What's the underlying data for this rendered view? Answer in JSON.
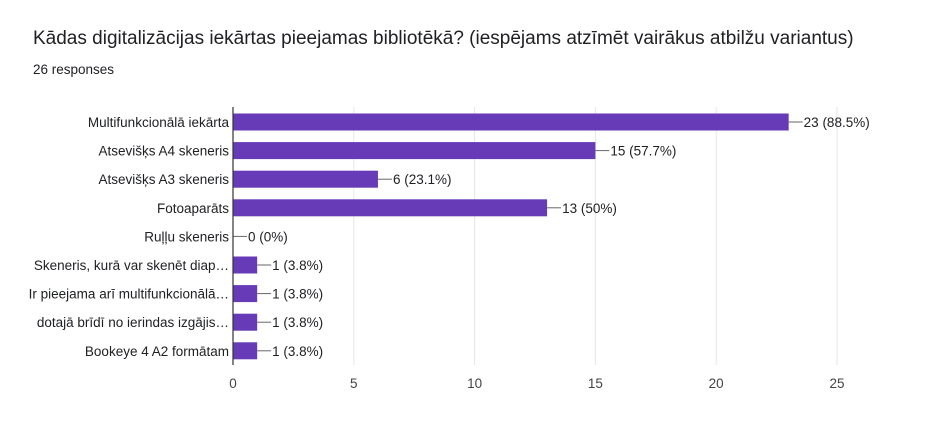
{
  "header": {
    "title": "Kādas digitalizācijas iekārtas pieejamas bibliotēkā? (iespējams atzīmēt vairākus atbilžu variantus)",
    "responses": "26 responses"
  },
  "colors": {
    "bar": "#673ab7",
    "grid": "#e6e6e6",
    "axis": "#333333"
  },
  "chart_data": {
    "type": "bar",
    "orientation": "horizontal",
    "categories": [
      "Multifunkcionālā iekārta",
      "Atsevišķs A4 skeneris",
      "Atsevišķs A3 skeneris",
      "Fotoaparāts",
      "Ruļļu skeneris",
      "Skeneris, kurā var skenēt diap…",
      "Ir pieejama arī multifunkcionālā…",
      "dotajā brīdī no ierindas izgājis…",
      "Bookeye 4 A2 formātam"
    ],
    "values": [
      23,
      15,
      6,
      13,
      0,
      1,
      1,
      1,
      1
    ],
    "data_labels": [
      "23 (88.5%)",
      "15 (57.7%)",
      "6 (23.1%)",
      "13 (50%)",
      "0 (0%)",
      "1 (3.8%)",
      "1 (3.8%)",
      "1 (3.8%)",
      "1 (3.8%)"
    ],
    "xlim": [
      0,
      25
    ],
    "xticks": [
      0,
      5,
      10,
      15,
      20,
      25
    ],
    "grid": true
  }
}
